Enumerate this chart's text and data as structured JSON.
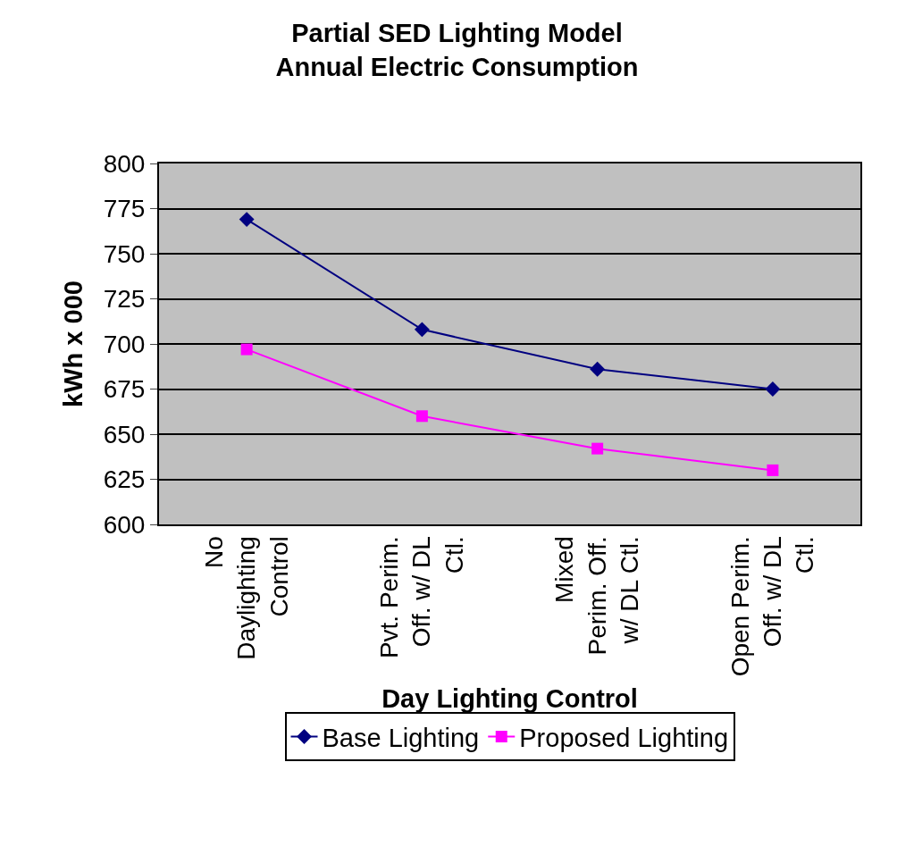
{
  "chart_data": {
    "type": "line",
    "title": "Partial SED Lighting Model\nAnnual Electric Consumption",
    "xlabel": "Day Lighting Control",
    "ylabel": "kWh x 000",
    "categories": [
      "No Daylighting Control",
      "Pvt. Perim. Off. w/ DL Ctl.",
      "Mixed Perim. Off. w/ DL Ctl.",
      "Open Perim. Off. w/ DL Ctl."
    ],
    "series": [
      {
        "name": "Base Lighting",
        "color": "#000080",
        "marker": "diamond",
        "values": [
          769,
          708,
          686,
          675
        ]
      },
      {
        "name": "Proposed Lighting",
        "color": "#ff00ff",
        "marker": "square",
        "values": [
          697,
          660,
          642,
          630
        ]
      }
    ],
    "ylim": [
      600,
      800
    ],
    "yticks": [
      600,
      625,
      650,
      675,
      700,
      725,
      750,
      775,
      800
    ],
    "grid": "y",
    "legend": "bottom",
    "line_style": "solid"
  }
}
